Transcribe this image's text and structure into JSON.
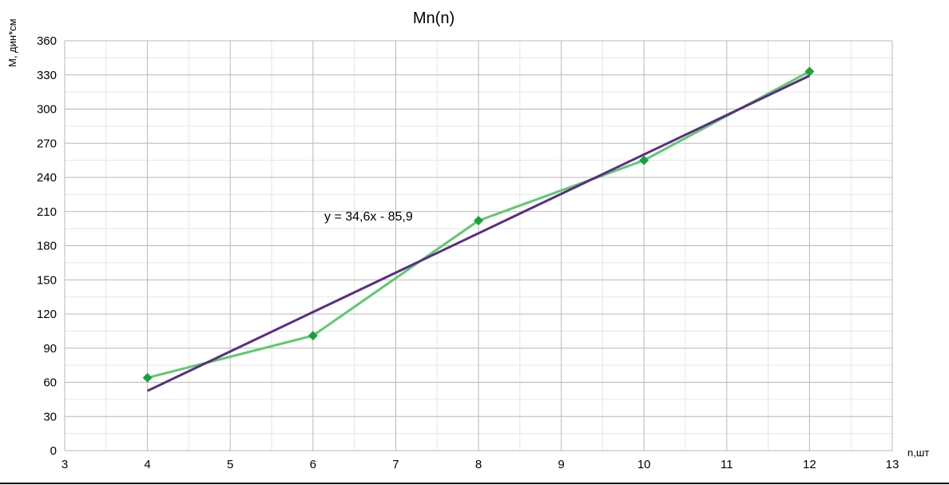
{
  "chart_data": {
    "type": "line",
    "title": "Mn(n)",
    "xlabel": "n,шт",
    "ylabel": "M, дин*см",
    "xlim": [
      3,
      13
    ],
    "ylim": [
      0,
      360
    ],
    "x_ticks": [
      3,
      4,
      5,
      6,
      7,
      8,
      9,
      10,
      11,
      12,
      13
    ],
    "y_ticks": [
      0,
      30,
      60,
      90,
      120,
      150,
      180,
      210,
      240,
      270,
      300,
      330,
      360
    ],
    "grid": true,
    "series": [
      {
        "kind": "data",
        "color": "#5fc96f",
        "marker_color": "#1aa33a",
        "marker": "diamond",
        "x": [
          4,
          6,
          8,
          10,
          12
        ],
        "y": [
          64,
          101,
          202,
          255,
          333
        ]
      },
      {
        "kind": "trendline",
        "color": "#5a2d82",
        "slope": 34.6,
        "intercept": -85.9,
        "x": [
          4,
          12
        ],
        "equation": "y = 34,6x - 85,9"
      }
    ]
  }
}
